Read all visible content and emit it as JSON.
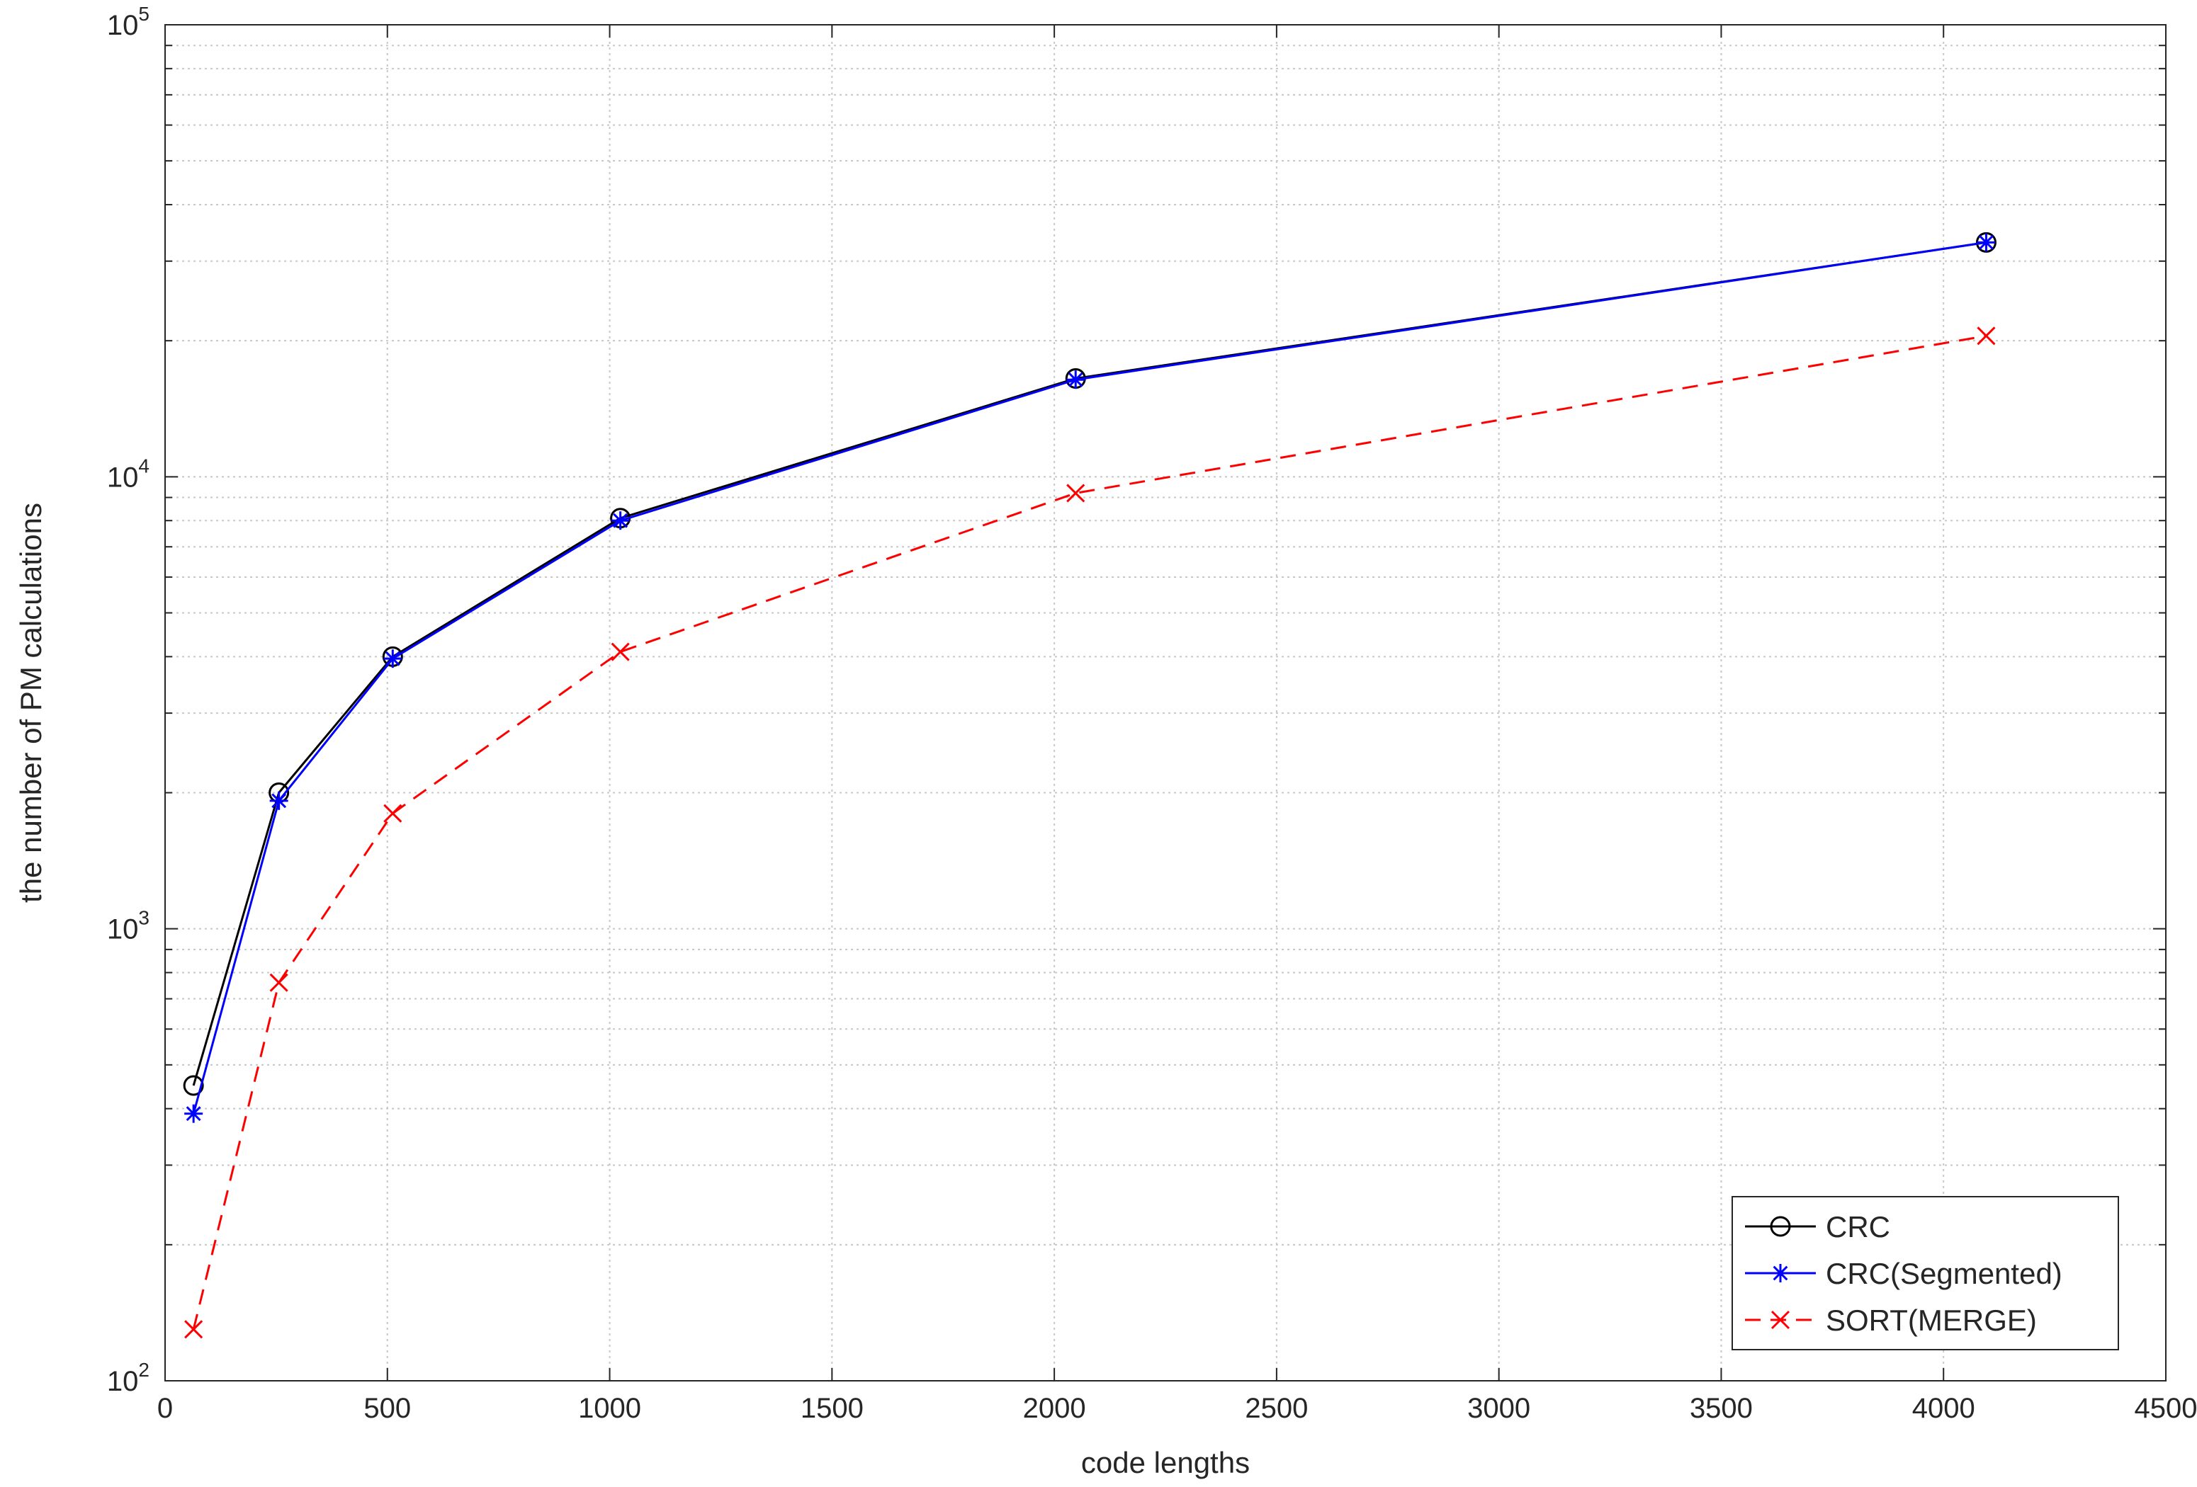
{
  "chart_data": {
    "type": "line",
    "title": "",
    "xlabel": "code lengths",
    "ylabel": "the number of PM calculations",
    "xlim": [
      0,
      4500
    ],
    "ylim": [
      100,
      100000
    ],
    "yscale": "log",
    "grid": true,
    "legend_position": "bottom-right",
    "x_ticks": [
      0,
      500,
      1000,
      1500,
      2000,
      2500,
      3000,
      3500,
      4000,
      4500
    ],
    "y_ticks": [
      {
        "base": "10",
        "exp": "2",
        "value": 100
      },
      {
        "base": "10",
        "exp": "3",
        "value": 1000
      },
      {
        "base": "10",
        "exp": "4",
        "value": 10000
      },
      {
        "base": "10",
        "exp": "5",
        "value": 100000
      }
    ],
    "x": [
      64,
      256,
      512,
      1024,
      2048,
      4096
    ],
    "series": [
      {
        "name": "CRC",
        "color": "#000000",
        "marker": "circle",
        "line": "solid",
        "values": [
          450,
          2000,
          4000,
          8100,
          16500,
          33000
        ]
      },
      {
        "name": "CRC(Segmented)",
        "color": "#0000ff",
        "marker": "asterisk",
        "line": "solid",
        "values": [
          390,
          1920,
          3960,
          8000,
          16400,
          33000
        ]
      },
      {
        "name": "SORT(MERGE)",
        "color": "#ff0000",
        "marker": "x",
        "line": "dashed",
        "values": [
          130,
          760,
          1800,
          4100,
          9200,
          20500
        ]
      }
    ]
  }
}
